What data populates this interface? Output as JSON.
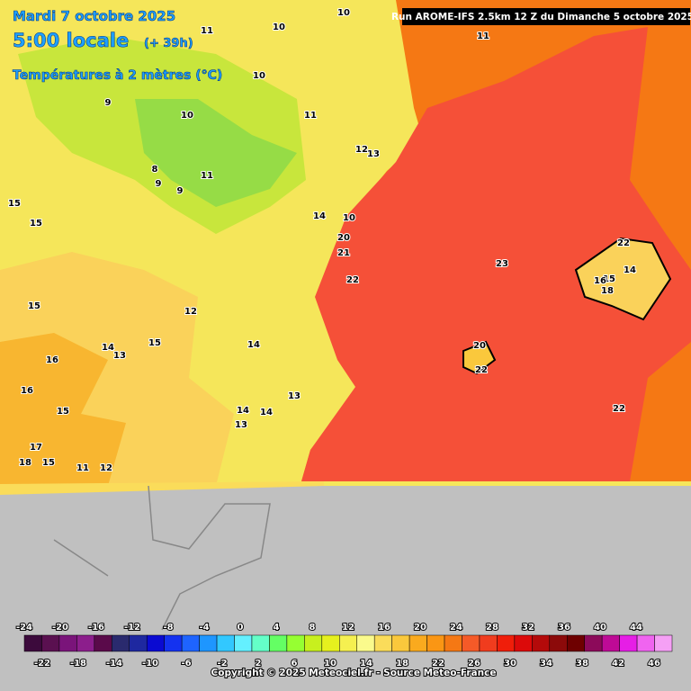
{
  "header": {
    "date": "Mardi 7 octobre 2025",
    "time": "5:00 locale",
    "lead": "(+ 39h)",
    "field": "Températures à 2 mètres (°C)",
    "run": "Run AROME-IFS 2.5km 12 Z du Dimanche 5 octobre 2025"
  },
  "map": {
    "labels": [
      "10",
      "11",
      "11",
      "10",
      "10",
      "9",
      "10",
      "11",
      "12",
      "13",
      "8",
      "9",
      "9",
      "15",
      "15",
      "11",
      "14",
      "10",
      "20",
      "21",
      "22",
      "23",
      "22",
      "14",
      "15",
      "16",
      "18",
      "20",
      "22",
      "22",
      "15",
      "12",
      "15",
      "14",
      "16",
      "14",
      "13",
      "13",
      "16",
      "14",
      "15",
      "14",
      "13",
      "17",
      "18",
      "15",
      "11",
      "12"
    ]
  },
  "colorbar": {
    "top_labels": [
      -24,
      -20,
      -16,
      -12,
      -8,
      -4,
      0,
      4,
      8,
      12,
      16,
      20,
      24,
      28,
      32,
      36,
      40,
      44
    ],
    "bottom_labels": [
      -22,
      -18,
      -14,
      -10,
      -6,
      -2,
      2,
      6,
      10,
      14,
      18,
      22,
      26,
      30,
      34,
      38,
      42,
      46
    ],
    "colors": [
      "#3c0a3c",
      "#5a1050",
      "#7a147a",
      "#8c1e8c",
      "#5a0a4a",
      "#2a2a6e",
      "#1e28a0",
      "#0a0ad2",
      "#1432f0",
      "#1e64ff",
      "#1e96ff",
      "#32c8ff",
      "#64f0ff",
      "#64ffc8",
      "#64ff64",
      "#96ff32",
      "#c8f01e",
      "#e6f01e",
      "#f5f050",
      "#fafa8c",
      "#fadc5a",
      "#fac83c",
      "#faaa1e",
      "#fa9614",
      "#f57814",
      "#f55a28",
      "#f03c1e",
      "#f01e0a",
      "#dc0a0a",
      "#b40a0a",
      "#8c0a0a",
      "#6e0000",
      "#8c0a5a",
      "#be0a96",
      "#e61ee6",
      "#f064f0",
      "#f5a0f5"
    ]
  },
  "footer": {
    "copyright": "Copyright © 2025 Meteociel.fr - Source Meteo-France"
  }
}
